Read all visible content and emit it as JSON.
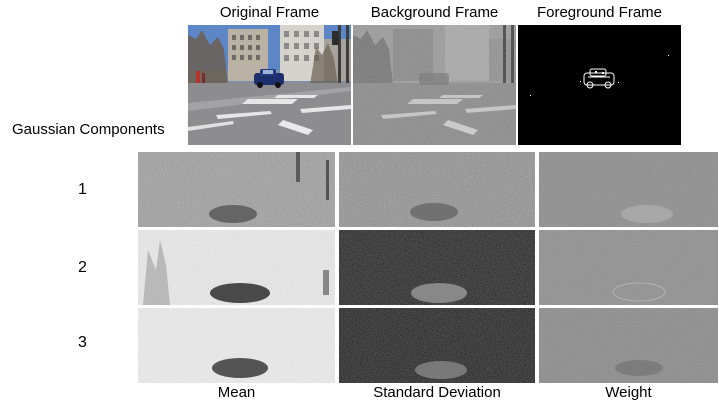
{
  "top_headers": [
    "Original Frame",
    "Background Frame",
    "Foreground Frame"
  ],
  "row_header": "Gaussian Components",
  "row_numbers": [
    "1",
    "2",
    "3"
  ],
  "column_headers": [
    "Mean",
    "Standard Deviation",
    "Weight"
  ]
}
